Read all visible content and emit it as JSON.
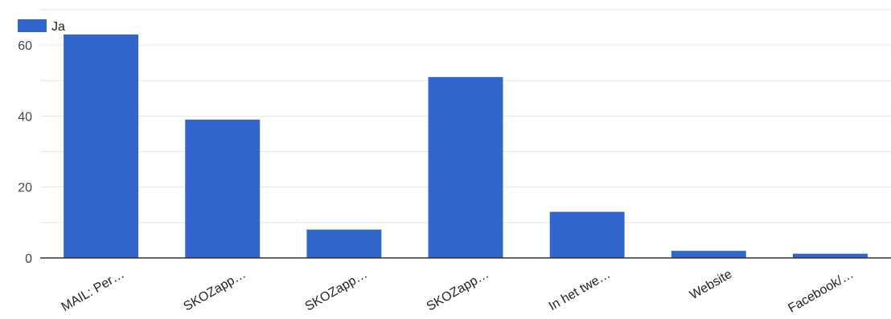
{
  "chart_data": {
    "type": "bar",
    "categories": [
      "MAIL: Per…",
      "SKOZapp…",
      "SKOZapp…",
      "SKOZapp…",
      "In het twe…",
      "Website",
      "Facebook/…"
    ],
    "series": [
      {
        "name": "Ja",
        "values": [
          63,
          39,
          8,
          51,
          13,
          2,
          1.2
        ]
      }
    ],
    "y_ticks": [
      "0",
      "20",
      "40",
      "60"
    ],
    "ylim": [
      0,
      70
    ],
    "grid": true,
    "legend": "top-left",
    "colors": {
      "bar": "#3366cc",
      "grid": "#e6e6e6",
      "axis": "#333333"
    }
  }
}
